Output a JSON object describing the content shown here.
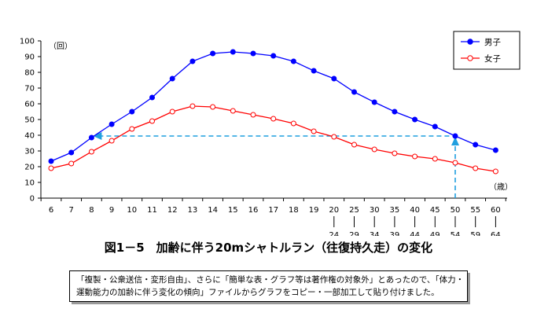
{
  "chart_data": {
    "type": "line",
    "title": "図1－5　加齢に伴う20mシャトルラン（往復持久走）の変化",
    "y_unit": "（回）",
    "x_unit": "（歳）",
    "ylim": [
      0,
      100
    ],
    "yticks": [
      0,
      10,
      20,
      30,
      40,
      50,
      60,
      70,
      80,
      90,
      100
    ],
    "categories": [
      "6",
      "7",
      "8",
      "9",
      "10",
      "11",
      "12",
      "13",
      "14",
      "15",
      "16",
      "17",
      "18",
      "19",
      "20",
      "25",
      "30",
      "35",
      "40",
      "45",
      "50",
      "55",
      "60"
    ],
    "range_upper": [
      "24",
      "29",
      "34",
      "39",
      "44",
      "49",
      "54",
      "59",
      "64"
    ],
    "range_start_index": 14,
    "series": [
      {
        "name": "男子",
        "color": "#0000ff",
        "marker": "filled-circle",
        "values": [
          23.5,
          29,
          38.5,
          47,
          55,
          64,
          76,
          87,
          92,
          93,
          92,
          90.5,
          87,
          81,
          76,
          67.5,
          61,
          55,
          50,
          45.5,
          39.5,
          34,
          30.5
        ]
      },
      {
        "name": "女子",
        "color": "#ff0000",
        "marker": "open-circle",
        "values": [
          19,
          22,
          29.5,
          36.5,
          44,
          49,
          55,
          58.5,
          58,
          55.5,
          53,
          50.5,
          47.5,
          42.5,
          39,
          34,
          31,
          28.5,
          26.5,
          25,
          22.5,
          19,
          17
        ]
      }
    ],
    "legend": "top-right",
    "annotation": {
      "value": 39.5,
      "color": "#1f9fdf",
      "from_category": "8",
      "to_category": "50",
      "style": "dashed-arrows"
    },
    "grid": false
  },
  "note": {
    "line1": "「複製・公衆送信・変形自由」、さらに「簡単な表・グラフ等は著作権の対象外」とあったので、「体力・",
    "line2": "運動能力の加齢に伴う変化の傾向」ファイルからグラフをコピー・一部加工して貼り付けました。"
  }
}
